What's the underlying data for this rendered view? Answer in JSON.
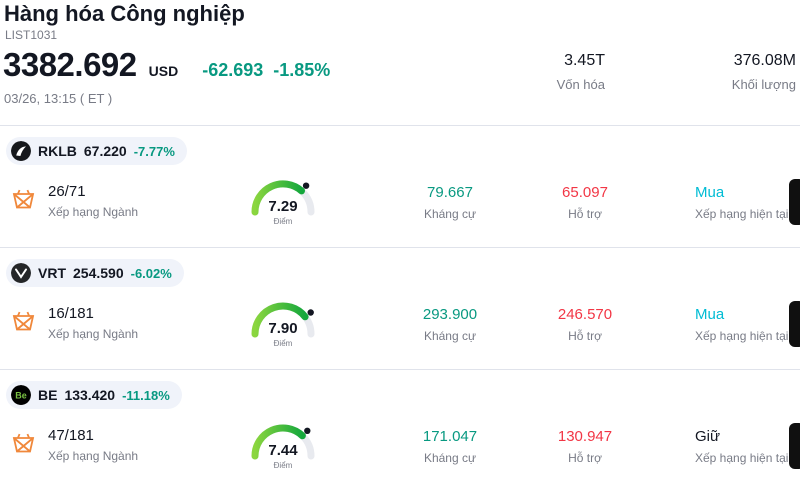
{
  "header": {
    "title": "Hàng hóa Công nghiệp",
    "list_id": "LIST1031",
    "price": "3382.692",
    "currency": "USD",
    "change": "-62.693",
    "change_pct": "-1.85%",
    "timestamp": "03/26, 13:15 ( ET )",
    "market_cap_value": "3.45T",
    "market_cap_label": "Vốn hóa",
    "volume_value": "376.08M",
    "volume_label": "Khối lượng"
  },
  "labels": {
    "rank": "Xếp hạng Ngành",
    "score": "Điểm",
    "resistance": "Kháng cự",
    "support": "Hỗ trợ",
    "rating": "Xếp hạng hiện tại"
  },
  "rows": [
    {
      "ticker": "RKLB",
      "price": "67.220",
      "change_pct": "-7.77%",
      "rank": "26/71",
      "score": "7.29",
      "resistance": "79.667",
      "support": "65.097",
      "rating": "Mua",
      "rating_color": "#00bcd4",
      "logo_text": ""
    },
    {
      "ticker": "VRT",
      "price": "254.590",
      "change_pct": "-6.02%",
      "rank": "16/181",
      "score": "7.90",
      "resistance": "293.900",
      "support": "246.570",
      "rating": "Mua",
      "rating_color": "#00bcd4",
      "logo_text": ""
    },
    {
      "ticker": "BE",
      "price": "133.420",
      "change_pct": "-11.18%",
      "rank": "47/181",
      "score": "7.44",
      "resistance": "171.047",
      "support": "130.947",
      "rating": "Giữ",
      "rating_color": "#131722",
      "logo_text": "Be"
    }
  ],
  "icons": {
    "rank_icon": "basket-icon",
    "row_logos": [
      "rklb-logo",
      "vrt-logo",
      "be-logo"
    ]
  },
  "colors": {
    "green": "#089981",
    "red": "#f23645",
    "buy_cyan": "#00bcd4",
    "dark": "#131722",
    "muted": "#787b86",
    "gauge_start": "#8bd63f",
    "gauge_end": "#14a73c",
    "gauge_track": "#e8eaef"
  }
}
